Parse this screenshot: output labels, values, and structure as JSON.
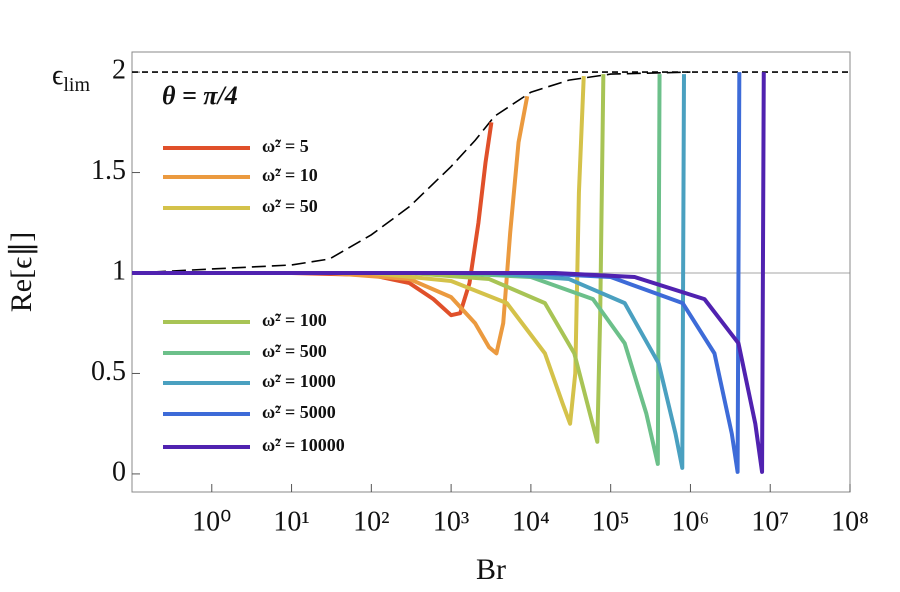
{
  "chart_data": {
    "type": "line",
    "annotation": "θ = π/4",
    "x_label": "Br",
    "y_label": "Re[ϵ∥]",
    "y_limit_label": {
      "base": "ϵ",
      "subscript": "lim"
    },
    "xlim": [
      0.1,
      100000000
    ],
    "ylim": [
      -0.09,
      2.1
    ],
    "x_scale": "log",
    "xticks": [
      {
        "value": 1,
        "label": "10⁰"
      },
      {
        "value": 10,
        "label": "10¹"
      },
      {
        "value": 100,
        "label": "10²"
      },
      {
        "value": 1000,
        "label": "10³"
      },
      {
        "value": 10000,
        "label": "10⁴"
      },
      {
        "value": 100000,
        "label": "10⁵"
      },
      {
        "value": 1000000,
        "label": "10⁶"
      },
      {
        "value": 10000000,
        "label": "10⁷"
      },
      {
        "value": 100000000,
        "label": "10⁸"
      }
    ],
    "yticks": [
      0,
      0.5,
      1,
      1.5,
      2
    ],
    "reference_lines": [
      {
        "y": 1,
        "style": "solid",
        "color": "#888888"
      },
      {
        "y": 2,
        "style": "dashed",
        "color": "#000000"
      }
    ],
    "limit_curve": {
      "color": "#000000",
      "style": "dashed",
      "x": [
        0.1,
        1,
        10,
        30,
        100,
        300,
        1000,
        2000,
        3500,
        10000,
        30000,
        100000,
        1000000
      ],
      "values": [
        1,
        1.02,
        1.04,
        1.07,
        1.19,
        1.33,
        1.53,
        1.66,
        1.78,
        1.9,
        1.96,
        1.99,
        2
      ]
    },
    "series": [
      {
        "name": "ω̃² = 5",
        "color": "#e0502a",
        "x": [
          0.1,
          10,
          100,
          300,
          600,
          1000,
          1300,
          1700,
          2200,
          2700,
          3200
        ],
        "values": [
          1,
          1,
          0.99,
          0.95,
          0.87,
          0.79,
          0.8,
          0.95,
          1.25,
          1.55,
          1.75
        ]
      },
      {
        "name": "ω̃² = 10",
        "color": "#eb9a3f",
        "x": [
          0.1,
          30,
          300,
          1000,
          2000,
          3000,
          3700,
          4500,
          5500,
          7000,
          9000
        ],
        "values": [
          1,
          1,
          0.97,
          0.88,
          0.75,
          0.63,
          0.6,
          0.75,
          1.2,
          1.65,
          1.88
        ]
      },
      {
        "name": "ω̃² = 50",
        "color": "#d4c24a",
        "x": [
          0.1,
          100,
          1000,
          5000,
          15000,
          25000,
          31000,
          36000,
          40000,
          46000
        ],
        "values": [
          1,
          1,
          0.96,
          0.85,
          0.6,
          0.35,
          0.25,
          0.5,
          1.4,
          1.98
        ]
      },
      {
        "name": "ω̃² = 100",
        "color": "#a8c455",
        "x": [
          0.1,
          300,
          3000,
          15000,
          35000,
          55000,
          68000,
          74000,
          81000
        ],
        "values": [
          1,
          1,
          0.97,
          0.85,
          0.6,
          0.3,
          0.16,
          0.8,
          1.99
        ]
      },
      {
        "name": "ω̃² = 500",
        "color": "#6cc08a",
        "x": [
          0.1,
          1000,
          10000,
          60000,
          150000,
          280000,
          390000,
          410000
        ],
        "values": [
          1,
          1,
          0.98,
          0.87,
          0.65,
          0.3,
          0.05,
          1.99
        ]
      },
      {
        "name": "ω̃² = 1000",
        "color": "#4aa0c0",
        "x": [
          0.1,
          3000,
          30000,
          150000,
          400000,
          650000,
          790000,
          830000
        ],
        "values": [
          1,
          1,
          0.97,
          0.85,
          0.55,
          0.2,
          0.03,
          1.99
        ]
      },
      {
        "name": "ω̃² = 5000",
        "color": "#3d6bd8",
        "x": [
          0.1,
          10000,
          100000,
          800000,
          2000000,
          3300000,
          3900000,
          4100000
        ],
        "values": [
          1,
          1,
          0.98,
          0.85,
          0.6,
          0.2,
          0.01,
          2
        ]
      },
      {
        "name": "ω̃² = 10000",
        "color": "#5022b0",
        "x": [
          0.1,
          20000,
          200000,
          1500000,
          4000000,
          6500000,
          7900000,
          8300000
        ],
        "values": [
          1,
          1,
          0.98,
          0.87,
          0.65,
          0.25,
          0.01,
          2
        ]
      }
    ]
  }
}
